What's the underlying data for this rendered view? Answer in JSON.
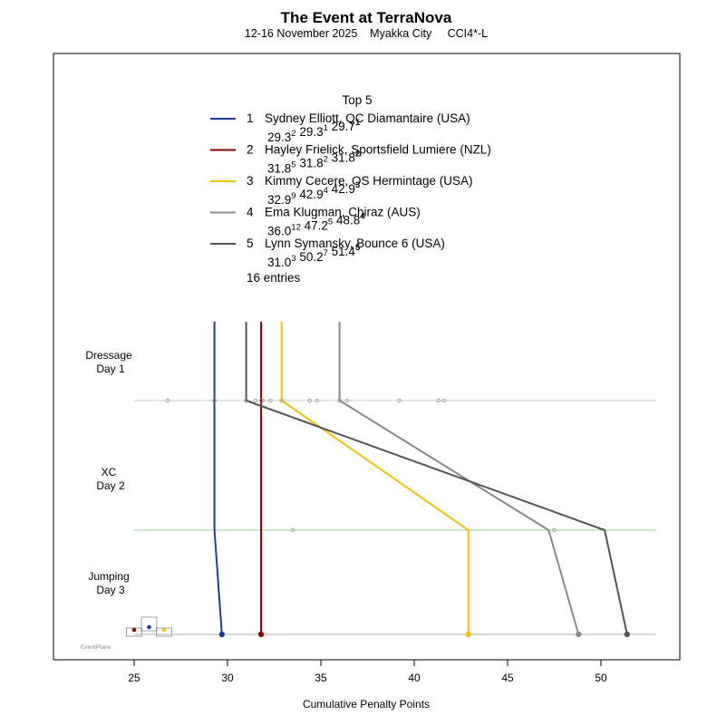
{
  "chart_data": {
    "type": "line",
    "title": "The Event at TerraNova",
    "subtitle": "12-16 November 2025    Myakka City     CCI4*-L",
    "legend_title": "Top 5",
    "entries_note": "16 entries",
    "xlabel": "Cumulative Penalty Points",
    "xlim": [
      21,
      53
    ],
    "xticks": [
      25,
      30,
      35,
      40,
      45,
      50
    ],
    "phases": [
      {
        "line1": "Dressage",
        "line2": "Day 1",
        "line_color": "#cccccc"
      },
      {
        "line1": "XC",
        "line2": "Day 2",
        "line_color": "#99cc99"
      },
      {
        "line1": "Jumping",
        "line2": "Day 3",
        "line_color": "#b0b0b0"
      }
    ],
    "series": [
      {
        "rank": "1",
        "rider": "Sydney Elliott",
        "horse": "QC Diamantaire",
        "nation": "(USA)",
        "color": "#1f3c99",
        "values": [
          29.3,
          29.3,
          29.7
        ],
        "places": [
          "2",
          "1",
          "1"
        ],
        "start": 29.3
      },
      {
        "rank": "2",
        "rider": "Hayley Frielick",
        "horse": "Sportsfield Lumiere",
        "nation": "(NZL)",
        "color": "#8b0000",
        "values": [
          31.8,
          31.8,
          31.8
        ],
        "places": [
          "5",
          "2",
          "2"
        ],
        "start": 31.8
      },
      {
        "rank": "3",
        "rider": "Kimmy Cecere",
        "horse": "OS Hermintage",
        "nation": "(USA)",
        "color": "#f5c400",
        "values": [
          32.9,
          42.9,
          42.9
        ],
        "places": [
          "9",
          "4",
          "3"
        ],
        "start": 32.9
      },
      {
        "rank": "4",
        "rider": "Ema Klugman",
        "horse": "Chiraz",
        "nation": "(AUS)",
        "color": "#888888",
        "values": [
          36.0,
          47.2,
          48.8
        ],
        "places": [
          "12",
          "5",
          "4"
        ],
        "start": 36.0
      },
      {
        "rank": "5",
        "rider": "Lynn Symansky",
        "horse": "Bounce 6",
        "nation": "(USA)",
        "color": "#555555",
        "values": [
          31.0,
          50.2,
          51.4
        ],
        "places": [
          "3",
          "7",
          "5"
        ],
        "start": 31.0
      }
    ],
    "other_dressage_scores": [
      26.8,
      31.5,
      31.9,
      32.3,
      34.4,
      34.8,
      36.4,
      39.2,
      41.3,
      41.6
    ],
    "other_xc_scores": [
      33.5,
      47.5
    ],
    "medal_icons": [
      {
        "value": 25.0,
        "color": "#8b0000"
      },
      {
        "value": 25.8,
        "color": "#1f3c99"
      },
      {
        "value": 26.6,
        "color": "#f5c400"
      }
    ],
    "watermark": "EventPlane"
  }
}
